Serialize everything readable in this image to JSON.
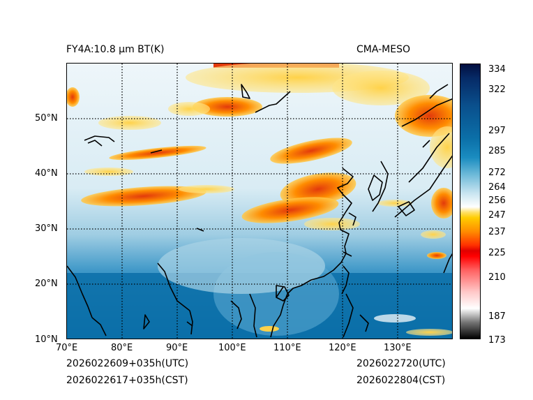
{
  "header": {
    "title_left": "FY4A:10.8 µm BT(K)",
    "title_right": "CMA-MESO"
  },
  "footer": {
    "init_utc": "2026022609+035h(UTC)",
    "init_cst": "2026022617+035h(CST)",
    "valid_utc": "2026022720(UTC)",
    "valid_cst": "2026022804(CST)"
  },
  "axes": {
    "lat_labels": [
      "50°N",
      "40°N",
      "30°N",
      "20°N",
      "10°N"
    ],
    "lon_labels": [
      "70°E",
      "80°E",
      "90°E",
      "100°E",
      "110°E",
      "120°E",
      "130°E"
    ]
  },
  "colorbar": {
    "labels": [
      "334",
      "322",
      "297",
      "285",
      "272",
      "264",
      "256",
      "247",
      "237",
      "225",
      "210",
      "187",
      "173"
    ]
  },
  "colors": {
    "ocean": "#0b6fa8",
    "cold_cloud": "#ff8c00",
    "cold_cloud_core": "#e8380a",
    "high_cloud": "#ffd24a",
    "mid_cloud": "#d8ecf4"
  }
}
